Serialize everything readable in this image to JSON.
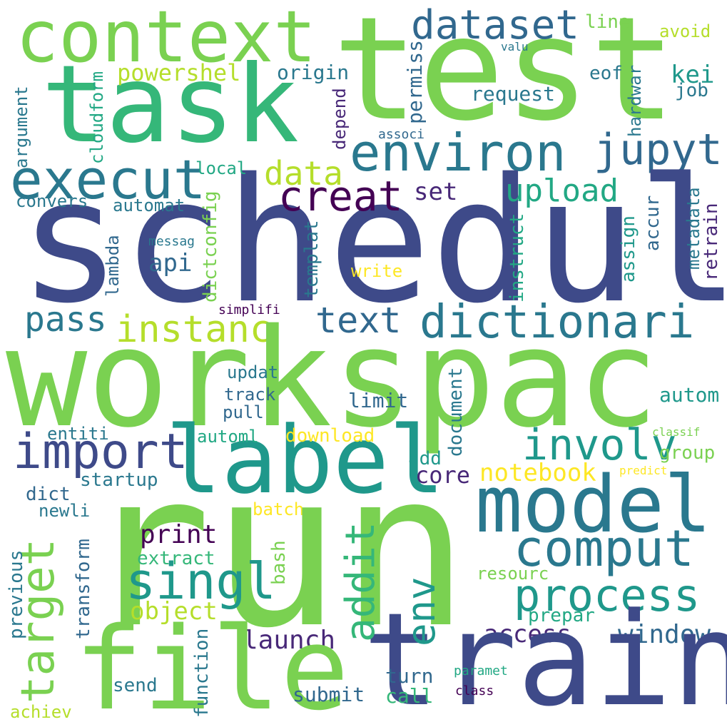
{
  "colors": {
    "bg": "#ffffff",
    "c1": "#7ad151",
    "c2": "#3e4a89",
    "c3": "#22a884",
    "c4": "#2a788e",
    "c5": "#35b779",
    "c6": "#440154",
    "c7": "#fde725",
    "c8": "#b5de2b",
    "c9": "#31688e",
    "c10": "#482878",
    "c11": "#1f988b"
  },
  "words": [
    "test",
    "task",
    "context",
    "dataset",
    "line",
    "avoid",
    "valu",
    "powershel",
    "origin",
    "eof",
    "kei",
    "job",
    "request",
    "hardwar",
    "permiss",
    "depend",
    "associ",
    "environ",
    "jupyt",
    "execut",
    "schedul",
    "data",
    "creat",
    "upload",
    "set",
    "local",
    "automat",
    "convers",
    "argument",
    "cloudform",
    "lambda",
    "dictconfig",
    "messag",
    "api",
    "write",
    "instruct",
    "assign",
    "accur",
    "metadata",
    "retrain",
    "templat",
    "simplifi",
    "pass",
    "instanc",
    "text",
    "dictionari",
    "workspac",
    "updat",
    "track",
    "pull",
    "limit",
    "autom",
    "entiti",
    "import",
    "label",
    "involv",
    "model",
    "automl",
    "download",
    "classif",
    "group",
    "document",
    "add",
    "core",
    "notebook",
    "predict",
    "startup",
    "dict",
    "newli",
    "batch",
    "run",
    "print",
    "comput",
    "extract",
    "target",
    "addit",
    "singl",
    "env",
    "process",
    "resourc",
    "previous",
    "transform",
    "object",
    "bash",
    "prepar",
    "access",
    "window",
    "launch",
    "file",
    "train",
    "function",
    "send",
    "turn",
    "paramet",
    "submit",
    "call",
    "class",
    "achiev"
  ]
}
